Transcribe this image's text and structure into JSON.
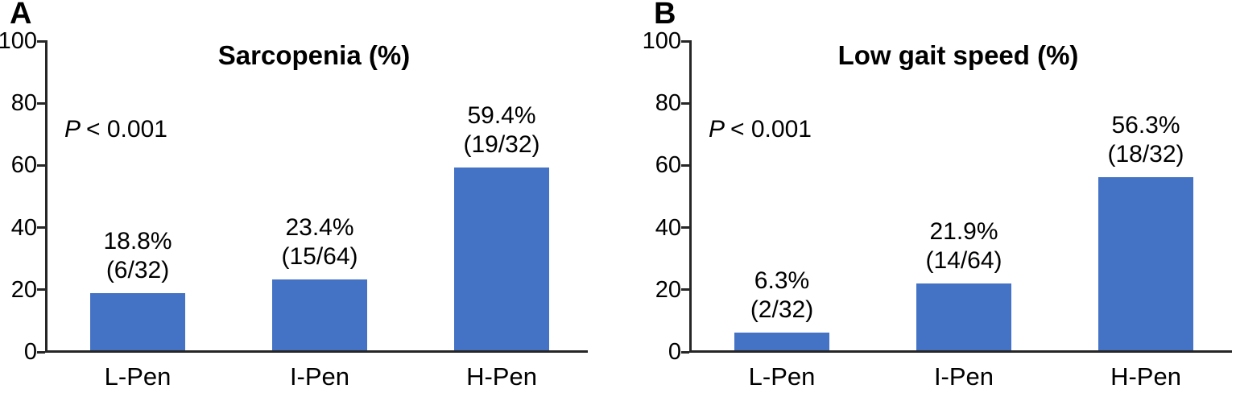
{
  "figure": {
    "background": "#ffffff"
  },
  "charts": [
    {
      "panel_label": "A",
      "chart_data": {
        "type": "bar",
        "title": "Sarcopenia (%)",
        "categories": [
          "L-Pen",
          "I-Pen",
          "H-Pen"
        ],
        "values": [
          18.8,
          23.4,
          59.4
        ],
        "bar_labels": [
          [
            "18.8%",
            "(6/32)"
          ],
          [
            "23.4%",
            "(15/64)"
          ],
          [
            "59.4%",
            "(19/32)"
          ]
        ],
        "counts": [
          [
            6,
            32
          ],
          [
            15,
            64
          ],
          [
            19,
            32
          ]
        ],
        "annotation": {
          "symbol": "P",
          "rest": "< 0.001",
          "full": "P < 0.001"
        },
        "xlabel": "",
        "ylabel": "",
        "ylim": [
          0,
          100
        ],
        "yticks": [
          0,
          20,
          40,
          60,
          80,
          100
        ],
        "grid": false,
        "legend": "none",
        "bar_color": "#4472C4",
        "axis_color": "#262626",
        "text_color": "#000000"
      }
    },
    {
      "panel_label": "B",
      "chart_data": {
        "type": "bar",
        "title": "Low gait speed (%)",
        "categories": [
          "L-Pen",
          "I-Pen",
          "H-Pen"
        ],
        "values": [
          6.3,
          21.9,
          56.3
        ],
        "bar_labels": [
          [
            "6.3%",
            "(2/32)"
          ],
          [
            "21.9%",
            "(14/64)"
          ],
          [
            "56.3%",
            "(18/32)"
          ]
        ],
        "counts": [
          [
            2,
            32
          ],
          [
            14,
            64
          ],
          [
            18,
            32
          ]
        ],
        "annotation": {
          "symbol": "P",
          "rest": "< 0.001",
          "full": "P < 0.001"
        },
        "xlabel": "",
        "ylabel": "",
        "ylim": [
          0,
          100
        ],
        "yticks": [
          0,
          20,
          40,
          60,
          80,
          100
        ],
        "grid": false,
        "legend": "none",
        "bar_color": "#4472C4",
        "axis_color": "#262626",
        "text_color": "#000000"
      }
    }
  ]
}
